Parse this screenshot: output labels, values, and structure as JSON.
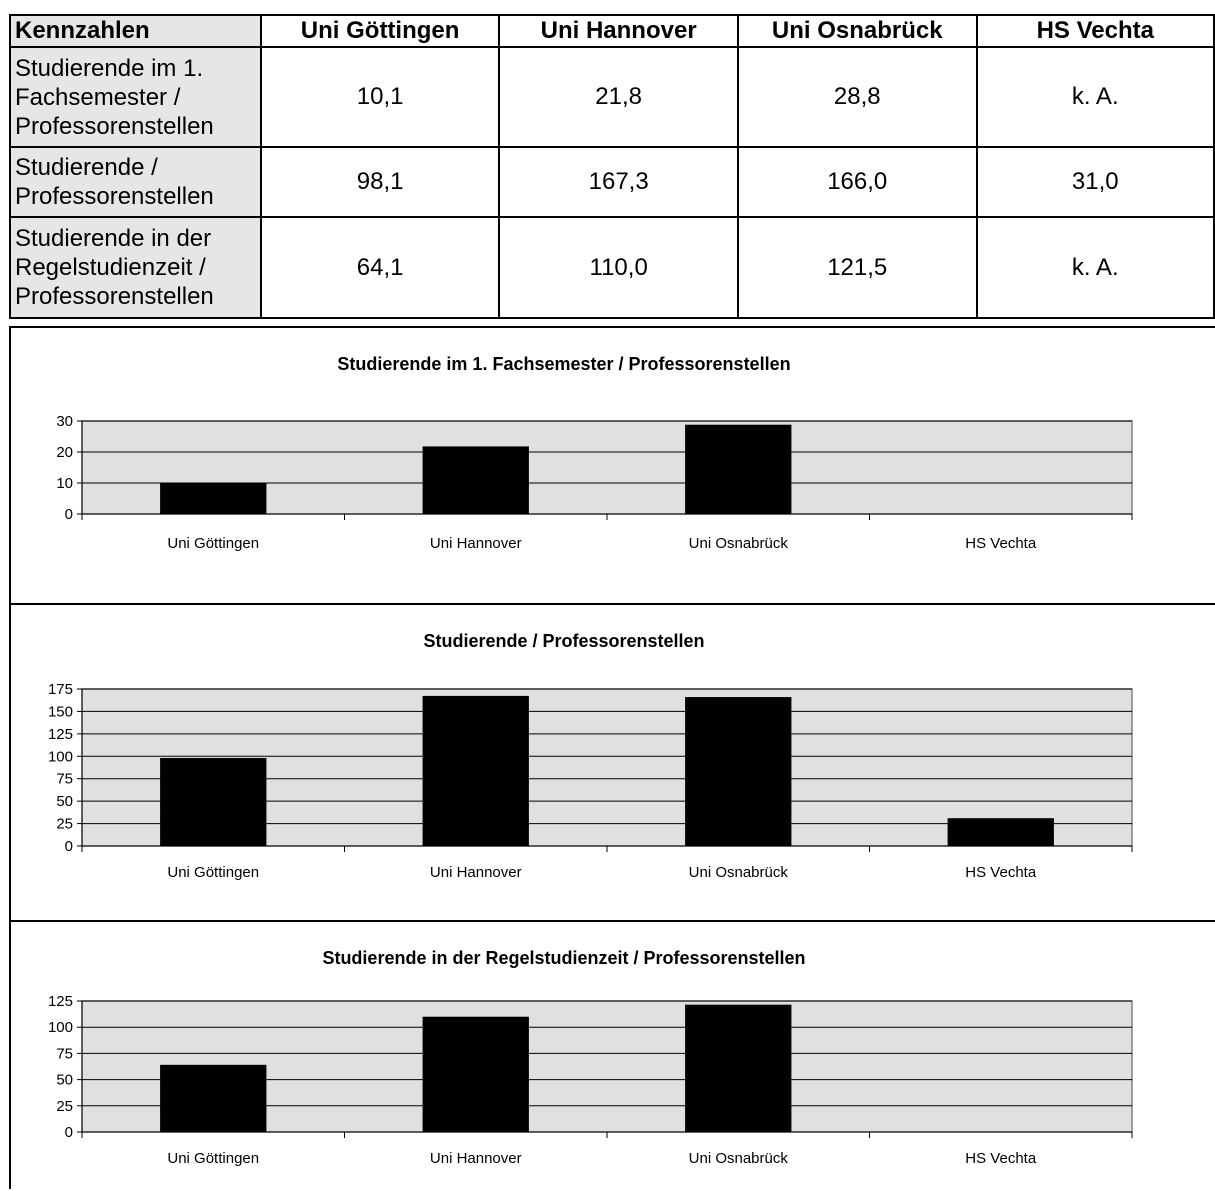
{
  "table": {
    "header": [
      "Kennzahlen",
      "Uni Göttingen",
      "Uni Hannover",
      "Uni Osnabrück",
      "HS Vechta"
    ],
    "rows": [
      {
        "label": [
          "Studierende im 1.",
          "Fachsemester /",
          "Professorenstellen"
        ],
        "values": [
          "10,1",
          "21,8",
          "28,8",
          "k. A."
        ]
      },
      {
        "label": [
          "Studierende /",
          "Professorenstellen"
        ],
        "values": [
          "98,1",
          "167,3",
          "166,0",
          "31,0"
        ]
      },
      {
        "label": [
          "Studierende in der",
          "Regelstudienzeit /",
          "Professorenstellen"
        ],
        "values": [
          "64,1",
          "110,0",
          "121,5",
          "k. A."
        ]
      }
    ]
  },
  "chart_data": [
    {
      "type": "bar",
      "title": "Studierende im 1. Fachsemester / Professorenstellen",
      "categories": [
        "Uni Göttingen",
        "Uni Hannover",
        "Uni Osnabrück",
        "HS Vechta"
      ],
      "values": [
        10.1,
        21.8,
        28.8,
        null
      ],
      "ylim": [
        0,
        30
      ],
      "yticks": [
        0,
        10,
        20,
        30
      ],
      "grid": true,
      "plot_bg": "#e0e0e0",
      "bar_color": "#000000"
    },
    {
      "type": "bar",
      "title": "Studierende / Professorenstellen",
      "categories": [
        "Uni Göttingen",
        "Uni Hannover",
        "Uni Osnabrück",
        "HS Vechta"
      ],
      "values": [
        98.1,
        167.3,
        166.0,
        31.0
      ],
      "ylim": [
        0,
        175
      ],
      "yticks": [
        0,
        25,
        50,
        75,
        100,
        125,
        150,
        175
      ],
      "grid": true,
      "plot_bg": "#e0e0e0",
      "bar_color": "#000000"
    },
    {
      "type": "bar",
      "title": "Studierende in der Regelstudienzeit / Professorenstellen",
      "categories": [
        "Uni Göttingen",
        "Uni Hannover",
        "Uni Osnabrück",
        "HS Vechta"
      ],
      "values": [
        64.1,
        110.0,
        121.5,
        null
      ],
      "ylim": [
        0,
        125
      ],
      "yticks": [
        0,
        25,
        50,
        75,
        100,
        125
      ],
      "grid": true,
      "plot_bg": "#e0e0e0",
      "bar_color": "#000000"
    }
  ]
}
